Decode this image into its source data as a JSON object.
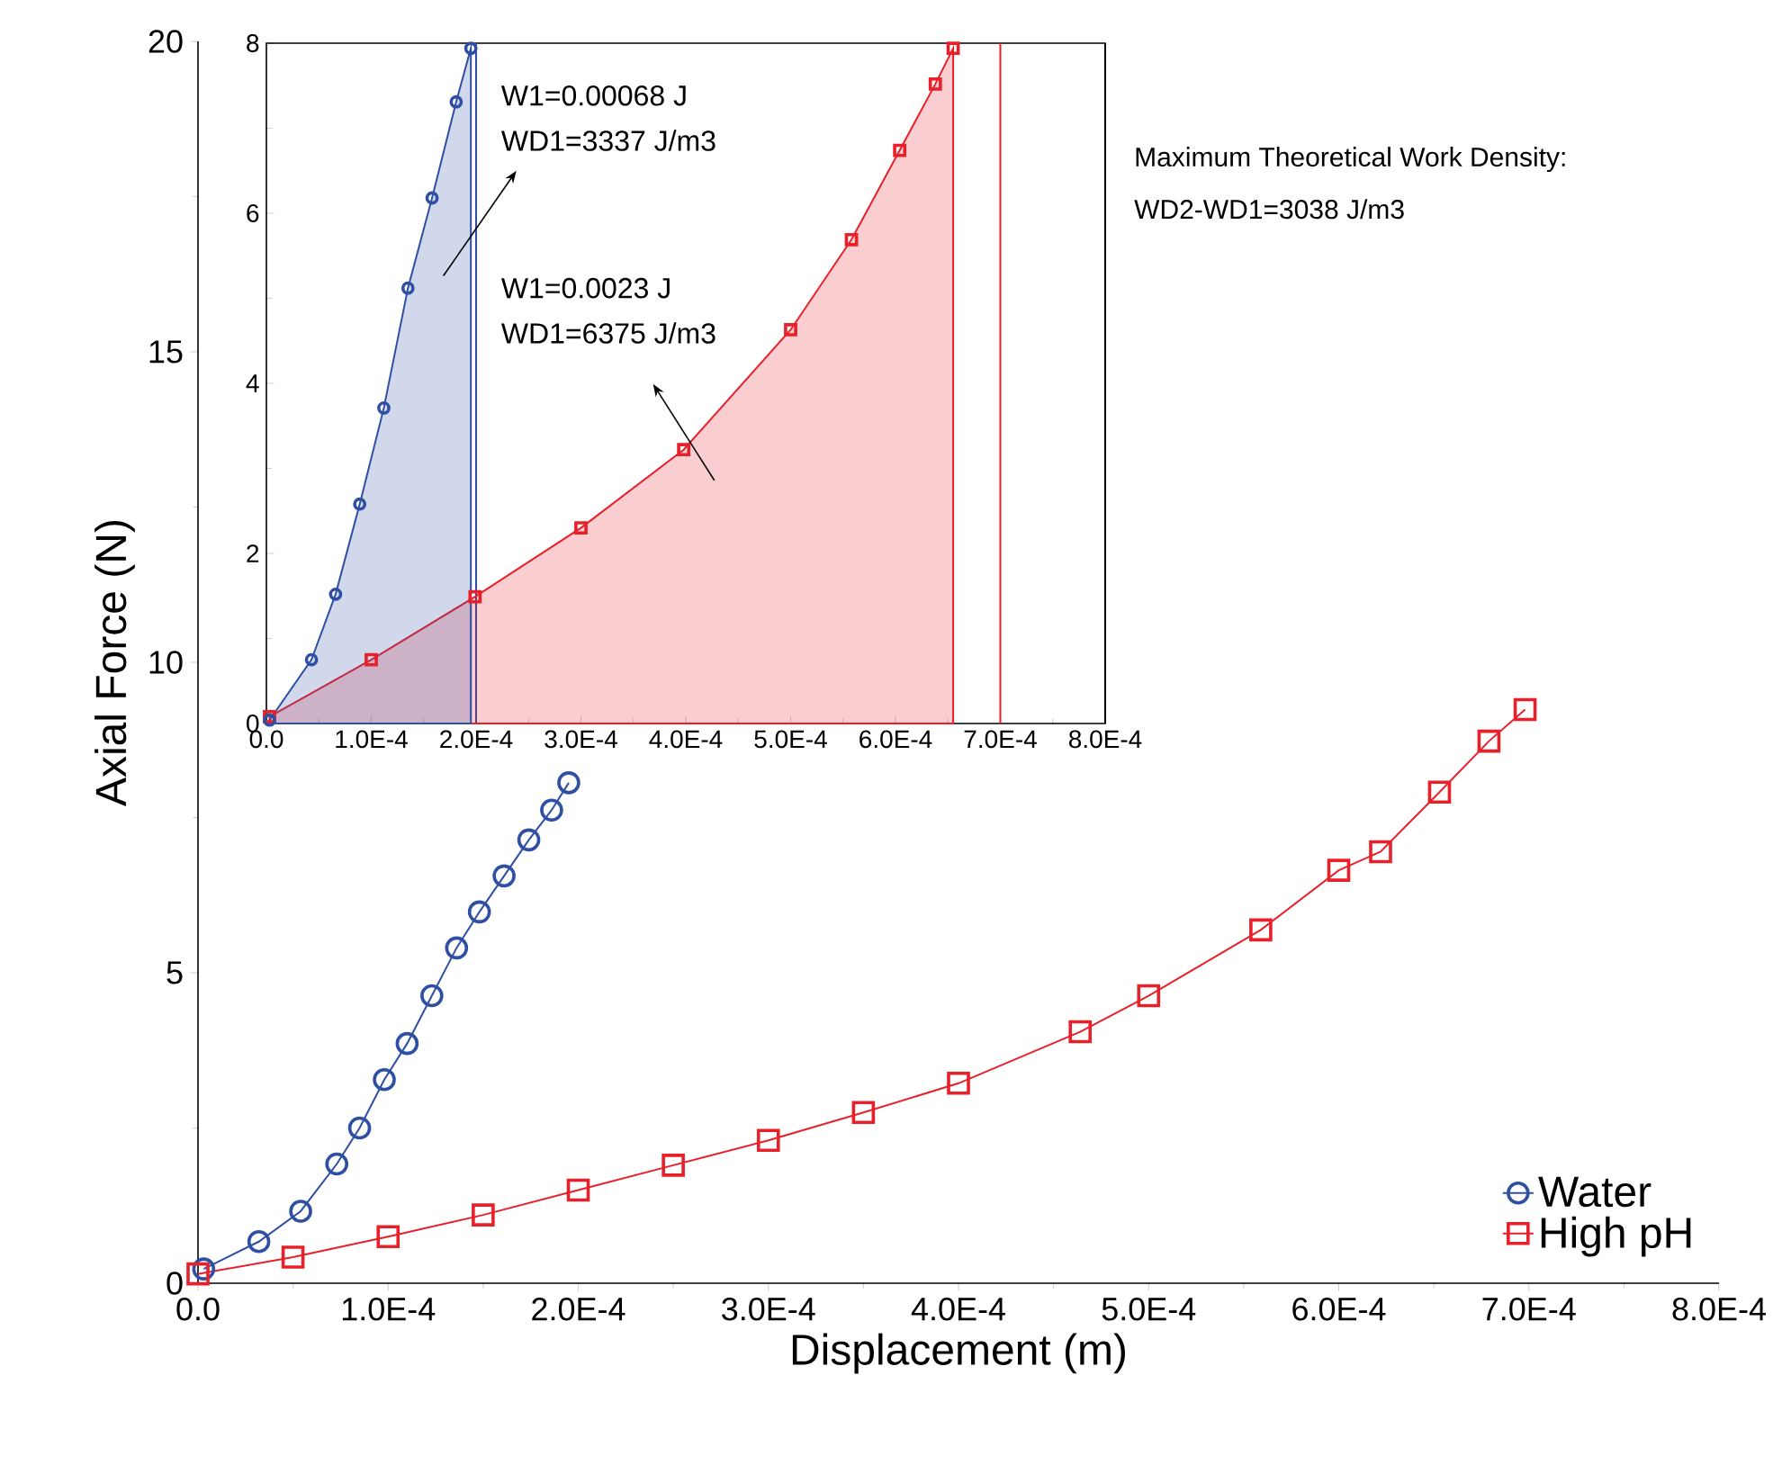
{
  "chart_data": [
    {
      "type": "line",
      "xlabel": "Displacement (m)",
      "ylabel": "Axial Force (N)",
      "xlim": [
        0,
        0.0008
      ],
      "ylim": [
        0,
        20
      ],
      "xticks": [
        {
          "value": 0,
          "label": "0.0"
        },
        {
          "value": 0.0001,
          "label": "1.0E-4"
        },
        {
          "value": 0.0002,
          "label": "2.0E-4"
        },
        {
          "value": 0.0003,
          "label": "3.0E-4"
        },
        {
          "value": 0.0004,
          "label": "4.0E-4"
        },
        {
          "value": 0.0005,
          "label": "5.0E-4"
        },
        {
          "value": 0.0006,
          "label": "6.0E-4"
        },
        {
          "value": 0.0007,
          "label": "7.0E-4"
        },
        {
          "value": 0.0008,
          "label": "8.0E-4"
        }
      ],
      "yticks": [
        0,
        5,
        10,
        15,
        20
      ],
      "legend": "bottom right",
      "annotations": [
        "Maximum Theoretical Work Density:",
        "WD2-WD1=3038 J/m3"
      ],
      "series": [
        {
          "name": "Water",
          "color": "#2e4fa3",
          "marker": "circle",
          "x": [
            3e-06,
            3.2e-05,
            5.4e-05,
            7.3e-05,
            8.5e-05,
            9.8e-05,
            0.00011,
            0.000123,
            0.000136,
            0.000148,
            0.000161,
            0.000174,
            0.000186,
            0.000195
          ],
          "values": [
            0.23,
            0.67,
            1.16,
            1.92,
            2.5,
            3.28,
            3.86,
            4.63,
            5.4,
            5.98,
            6.56,
            7.14,
            7.62,
            8.06
          ]
        },
        {
          "name": "High pH",
          "color": "#e8202a",
          "marker": "square",
          "x": [
            0,
            5e-05,
            0.0001,
            0.00015,
            0.0002,
            0.00025,
            0.0003,
            0.00035,
            0.0004,
            0.000464,
            0.0005,
            0.000559,
            0.0006,
            0.000622,
            0.000653,
            0.000679,
            0.000698
          ],
          "values": [
            0.15,
            0.42,
            0.75,
            1.1,
            1.5,
            1.9,
            2.3,
            2.75,
            3.22,
            4.05,
            4.63,
            5.69,
            6.65,
            6.95,
            7.91,
            8.73,
            9.24
          ]
        }
      ]
    },
    {
      "type": "area",
      "xlim": [
        0,
        0.0008
      ],
      "ylim": [
        0,
        8
      ],
      "xticks": [
        {
          "value": 0,
          "label": "0.0"
        },
        {
          "value": 0.0001,
          "label": "1.0E-4"
        },
        {
          "value": 0.0002,
          "label": "2.0E-4"
        },
        {
          "value": 0.0003,
          "label": "3.0E-4"
        },
        {
          "value": 0.0004,
          "label": "4.0E-4"
        },
        {
          "value": 0.0005,
          "label": "5.0E-4"
        },
        {
          "value": 0.0006,
          "label": "6.0E-4"
        },
        {
          "value": 0.0007,
          "label": "7.0E-4"
        },
        {
          "value": 0.0008,
          "label": "8.0E-4"
        }
      ],
      "yticks": [
        0,
        2,
        4,
        6,
        8
      ],
      "annotations": [
        "W1=0.00068 J",
        "WD1=3337 J/m3",
        "W1=0.0023 J",
        "WD1=6375 J/m3"
      ],
      "ref_lines": [
        {
          "axis": "x",
          "value": 0.0002,
          "color": "#2e4fa3"
        },
        {
          "axis": "x",
          "value": 0.0007,
          "color": "#e8202a"
        },
        {
          "axis": "x",
          "value": 0.0008,
          "color": "#000000"
        }
      ],
      "series": [
        {
          "color": "#e8202a",
          "marker": "square",
          "x": [
            3e-06,
            0.0001,
            0.000199,
            0.0003,
            0.000398,
            0.0005,
            0.000558,
            0.000604,
            0.000638,
            0.000655
          ],
          "values": [
            0.08,
            0.75,
            1.49,
            2.3,
            3.22,
            4.63,
            5.69,
            6.74,
            7.52,
            7.94
          ]
        },
        {
          "color": "#2e4fa3",
          "marker": "circle",
          "x": [
            3e-06,
            4.3e-05,
            6.6e-05,
            8.9e-05,
            0.000112,
            0.000135,
            0.000158,
            0.000181,
            0.000195
          ],
          "values": [
            0.04,
            0.75,
            1.52,
            2.58,
            3.71,
            5.12,
            6.18,
            7.31,
            7.94
          ]
        }
      ]
    }
  ]
}
